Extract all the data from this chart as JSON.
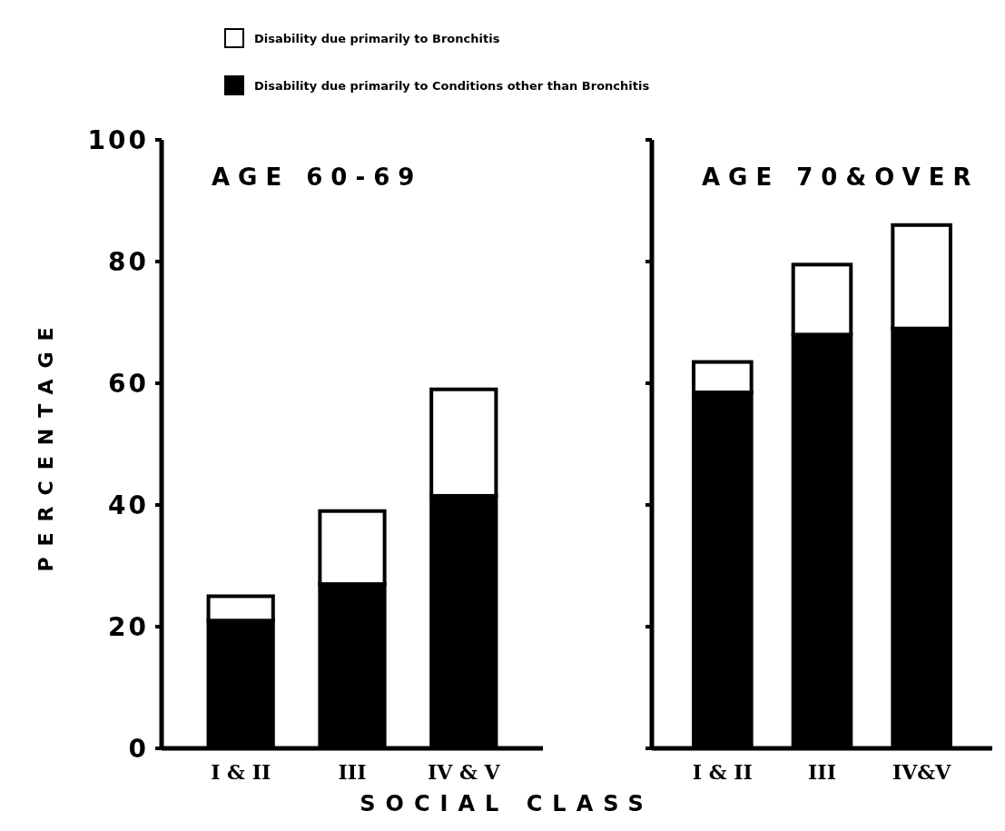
{
  "chart_data": [
    {
      "type": "bar",
      "title": "AGE 60-69",
      "xlabel": "SOCIAL CLASS",
      "ylabel": "PERCENTAGE",
      "categories": [
        "I & II",
        "III",
        "IV & V"
      ],
      "stacked": true,
      "legend": "top",
      "grid": false,
      "ylim": [
        0,
        100
      ],
      "yticks": [
        0,
        20,
        40,
        60,
        80,
        100
      ],
      "series": [
        {
          "name": "Disability due primarily to Conditions other than Bronchitis",
          "color": "#000000",
          "values": [
            21,
            27,
            41.5
          ]
        },
        {
          "name": "Disability due primarily to Bronchitis",
          "color": "#ffffff",
          "values": [
            4,
            12,
            17.5
          ]
        }
      ]
    },
    {
      "type": "bar",
      "title": "AGE 70&OVER",
      "categories": [
        "I & II",
        "III",
        "IV&V"
      ],
      "stacked": true,
      "grid": false,
      "tick_labels": "x",
      "ylim": [
        0,
        100
      ],
      "yticks": [
        0,
        20,
        40,
        60,
        80,
        100
      ],
      "series": [
        {
          "color": "#000000",
          "values": [
            58.5,
            68,
            69
          ]
        },
        {
          "color": "#ffffff",
          "values": [
            5,
            11.5,
            17
          ]
        }
      ]
    }
  ]
}
